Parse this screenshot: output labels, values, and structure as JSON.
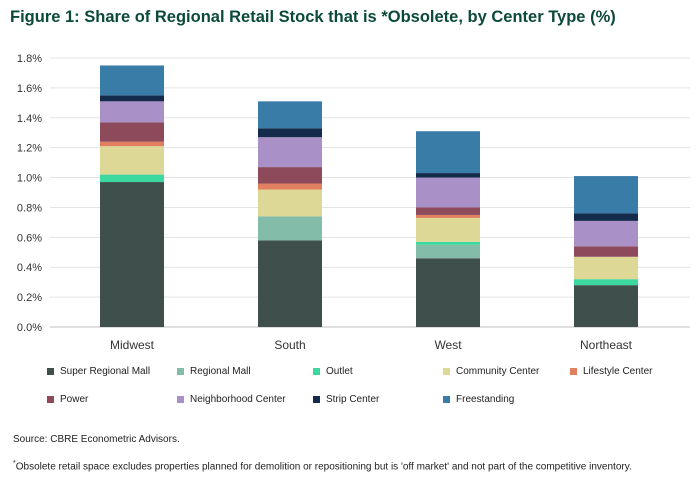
{
  "title": "Figure 1: Share of Regional Retail Stock that is *Obsolete, by Center Type (%)",
  "chart_data": {
    "type": "bar",
    "stacked": true,
    "categories": [
      "Midwest",
      "South",
      "West",
      "Northeast"
    ],
    "ylim": [
      0,
      1.8
    ],
    "yticks": [
      "0.0%",
      "0.2%",
      "0.4%",
      "0.6%",
      "0.8%",
      "1.0%",
      "1.2%",
      "1.4%",
      "1.6%",
      "1.8%"
    ],
    "grid": true,
    "legend_position": "bottom",
    "series": [
      {
        "name": "Super Regional Mall",
        "color": "#3f4f4c",
        "values": [
          0.97,
          0.58,
          0.46,
          0.28
        ]
      },
      {
        "name": "Regional Mall",
        "color": "#84bcaa",
        "values": [
          0.0,
          0.16,
          0.09,
          0.0
        ]
      },
      {
        "name": "Outlet",
        "color": "#3cd89f",
        "values": [
          0.05,
          0.0,
          0.02,
          0.04
        ]
      },
      {
        "name": "Community Center",
        "color": "#ded897",
        "values": [
          0.19,
          0.18,
          0.16,
          0.15
        ]
      },
      {
        "name": "Lifestyle Center",
        "color": "#e08061",
        "values": [
          0.03,
          0.04,
          0.02,
          0.0
        ]
      },
      {
        "name": "Power",
        "color": "#8c4a5b",
        "values": [
          0.13,
          0.11,
          0.05,
          0.07
        ]
      },
      {
        "name": "Neighborhood Center",
        "color": "#a990c7",
        "values": [
          0.14,
          0.2,
          0.2,
          0.17
        ]
      },
      {
        "name": "Strip Center",
        "color": "#142b4c",
        "values": [
          0.04,
          0.06,
          0.03,
          0.05
        ]
      },
      {
        "name": "Freestanding",
        "color": "#3a7ca8",
        "values": [
          0.2,
          0.18,
          0.28,
          0.25
        ]
      }
    ]
  },
  "source": "Source: CBRE Econometric Advisors.",
  "footnote": {
    "marker": "*",
    "text": "Obsolete retail space excludes properties planned for demolition or repositioning but is 'off market' and not part of the competitive inventory."
  }
}
